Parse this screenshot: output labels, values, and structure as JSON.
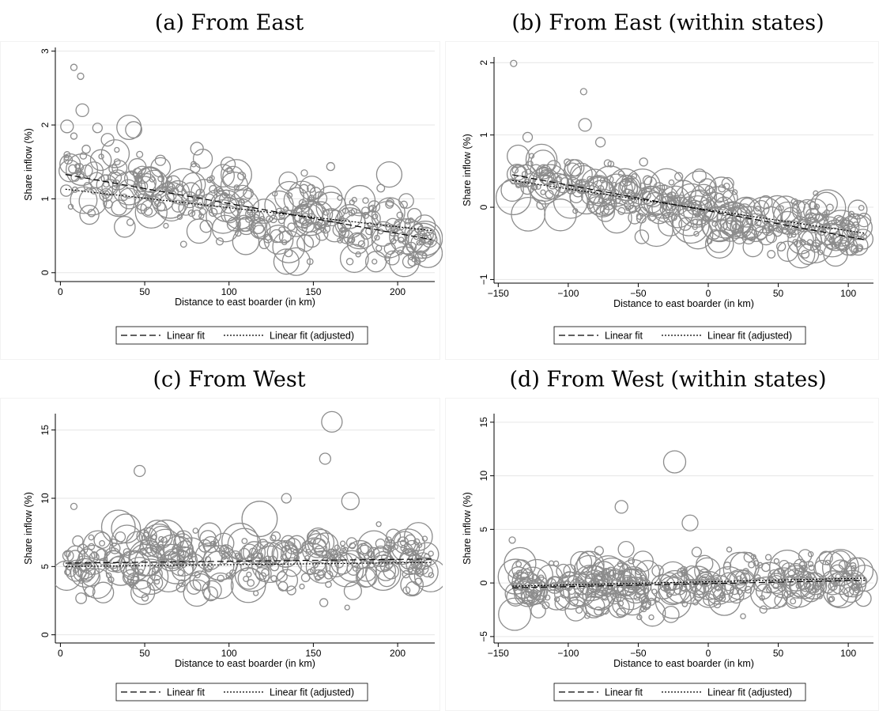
{
  "chart_data": [
    {
      "type": "scatter",
      "title": "(a) From East",
      "xlabel": "Distance to east boarder (in km)",
      "ylabel": "Share inflow (%)",
      "xlim": [
        -3,
        222
      ],
      "ylim": [
        -0.12,
        3.05
      ],
      "xticks": [
        0,
        50,
        100,
        150,
        200
      ],
      "yticks": [
        0,
        1,
        2,
        3
      ],
      "grid": true,
      "legend_position": "bottom",
      "series": [
        {
          "name": "Linear fit",
          "style": "dashed",
          "x": [
            3,
            220
          ],
          "y": [
            1.33,
            0.45
          ]
        },
        {
          "name": "Linear fit (adjusted)",
          "style": "dotted",
          "x": [
            3,
            220
          ],
          "y": [
            1.13,
            0.57
          ]
        }
      ],
      "bubble_count": 340,
      "bubble_y_range": [
        0.15,
        2.8
      ]
    },
    {
      "type": "scatter",
      "title": "(b) From East (within states)",
      "xlabel": "Distance to east boarder (in km)",
      "ylabel": "Share inflow (%)",
      "xlim": [
        -153,
        118
      ],
      "ylim": [
        -1.05,
        2.08
      ],
      "xticks": [
        -150,
        -100,
        -50,
        0,
        50,
        100
      ],
      "yticks": [
        -1,
        0,
        1,
        2
      ],
      "grid": true,
      "legend_position": "bottom",
      "series": [
        {
          "name": "Linear fit",
          "style": "dashed",
          "x": [
            -140,
            112
          ],
          "y": [
            0.45,
            -0.45
          ]
        },
        {
          "name": "Linear fit (adjusted)",
          "style": "dotted",
          "x": [
            -140,
            112
          ],
          "y": [
            0.37,
            -0.36
          ]
        }
      ],
      "bubble_count": 360,
      "bubble_y_range": [
        -0.65,
        2.0
      ]
    },
    {
      "type": "scatter",
      "title": "(c) From West",
      "xlabel": "Distance to east boarder (in km)",
      "ylabel": "Share inflow (%)",
      "xlim": [
        -3,
        222
      ],
      "ylim": [
        -0.6,
        16.2
      ],
      "xticks": [
        0,
        50,
        100,
        150,
        200
      ],
      "yticks": [
        0,
        5,
        10,
        15
      ],
      "grid": true,
      "legend_position": "bottom",
      "series": [
        {
          "name": "Linear fit",
          "style": "dashed",
          "x": [
            3,
            220
          ],
          "y": [
            5.25,
            5.55
          ]
        },
        {
          "name": "Linear fit (adjusted)",
          "style": "dotted",
          "x": [
            3,
            220
          ],
          "y": [
            5.0,
            5.3
          ]
        }
      ],
      "bubble_count": 340,
      "bubble_y_range": [
        2.0,
        15.6
      ]
    },
    {
      "type": "scatter",
      "title": "(d) From West (within states)",
      "xlabel": "Distance to east boarder (in km)",
      "ylabel": "Share inflow (%)",
      "xlim": [
        -153,
        118
      ],
      "ylim": [
        -5.6,
        15.8
      ],
      "xticks": [
        -150,
        -100,
        -50,
        0,
        50,
        100
      ],
      "yticks": [
        -5,
        0,
        5,
        10,
        15
      ],
      "grid": true,
      "legend_position": "bottom",
      "series": [
        {
          "name": "Linear fit",
          "style": "dashed",
          "x": [
            -140,
            112
          ],
          "y": [
            -0.45,
            0.25
          ]
        },
        {
          "name": "Linear fit (adjusted)",
          "style": "dotted",
          "x": [
            -140,
            112
          ],
          "y": [
            -0.3,
            0.45
          ]
        }
      ],
      "bubble_count": 360,
      "bubble_y_range": [
        -3.2,
        11.3
      ]
    }
  ],
  "colors": {
    "bubble_stroke": "#8c8c8c",
    "grid": "#e6e6e6",
    "fit_line": "#000000",
    "background": "#ffffff"
  }
}
